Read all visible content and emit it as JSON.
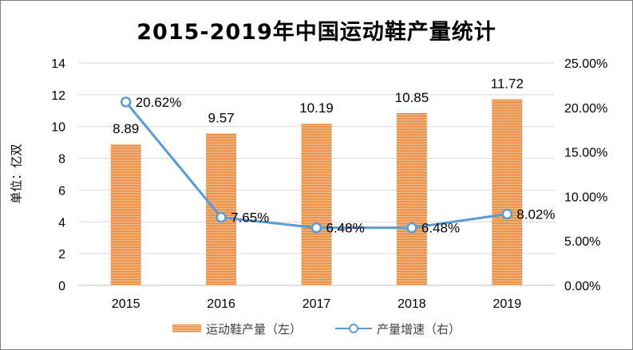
{
  "chart_data": {
    "type": "bar+line",
    "title": "2015-2019年中国运动鞋产量统计",
    "ylabel": "单位：亿双",
    "categories": [
      "2015",
      "2016",
      "2017",
      "2018",
      "2019"
    ],
    "left_axis": {
      "min": 0,
      "max": 14,
      "step": 2,
      "ticks": [
        "0",
        "2",
        "4",
        "6",
        "8",
        "10",
        "12",
        "14"
      ]
    },
    "right_axis": {
      "min": 0,
      "max": 25,
      "step": 5,
      "ticks": [
        "0.00%",
        "5.00%",
        "10.00%",
        "15.00%",
        "20.00%",
        "25.00%"
      ]
    },
    "grid": true,
    "legend_position": "bottom",
    "series": [
      {
        "name": "运动鞋产量（左）",
        "type": "bar",
        "axis": "left",
        "color": "#e88a3e",
        "values": [
          8.89,
          9.57,
          10.19,
          10.85,
          11.72
        ],
        "labels": [
          "8.89",
          "9.57",
          "10.19",
          "10.85",
          "11.72"
        ]
      },
      {
        "name": "产量增速（右）",
        "type": "line",
        "axis": "right",
        "color": "#5b9bd5",
        "values": [
          20.62,
          7.65,
          6.48,
          6.48,
          8.02
        ],
        "labels": [
          "20.62%",
          "7.65%",
          "6.48%",
          "6.48%",
          "8.02%"
        ]
      }
    ]
  }
}
